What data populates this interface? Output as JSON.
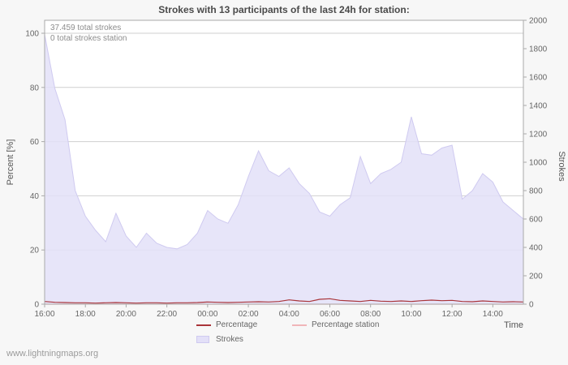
{
  "page": {
    "watermark": "www.lightningmaps.org"
  },
  "chart": {
    "title": "Strokes with 13 participants of the last 24h for station:",
    "annotations": {
      "total_strokes": "37.459 total strokes",
      "total_strokes_station": "0 total strokes station"
    },
    "axes": {
      "left_label": "Percent [%]",
      "right_label": "Strokes",
      "x_label": "Time"
    },
    "legend": {
      "percentage": "Percentage",
      "percentage_station": "Percentage station",
      "strokes": "Strokes"
    }
  },
  "chart_data": {
    "type": "area",
    "title": "Strokes with 13 participants of the last 24h for station:",
    "x": [
      "16:00",
      "16:30",
      "17:00",
      "17:30",
      "18:00",
      "18:30",
      "19:00",
      "19:30",
      "20:00",
      "20:30",
      "21:00",
      "21:30",
      "22:00",
      "22:30",
      "23:00",
      "23:30",
      "00:00",
      "00:30",
      "01:00",
      "01:30",
      "02:00",
      "02:30",
      "03:00",
      "03:30",
      "04:00",
      "04:30",
      "05:00",
      "05:30",
      "06:00",
      "06:30",
      "07:00",
      "07:30",
      "08:00",
      "08:30",
      "09:00",
      "09:30",
      "10:00",
      "10:30",
      "11:00",
      "11:30",
      "12:00",
      "12:30",
      "13:00",
      "13:30",
      "14:00",
      "14:30",
      "15:00",
      "15:30"
    ],
    "x_tick_every": 4,
    "xlabel": "Time",
    "left_axis": {
      "label": "Percent [%]",
      "min": 0,
      "max": 100,
      "ticks": [
        0,
        20,
        40,
        60,
        80,
        100
      ]
    },
    "right_axis": {
      "label": "Strokes",
      "min": 0,
      "max": 2000,
      "ticks": [
        0,
        200,
        400,
        600,
        800,
        1000,
        1200,
        1400,
        1600,
        1800,
        2000
      ]
    },
    "series": [
      {
        "name": "Strokes",
        "type": "area",
        "axis": "right",
        "values": [
          1900,
          1520,
          1300,
          800,
          620,
          520,
          440,
          640,
          480,
          400,
          500,
          430,
          400,
          390,
          420,
          500,
          660,
          600,
          570,
          700,
          900,
          1080,
          940,
          900,
          960,
          850,
          780,
          650,
          620,
          700,
          750,
          1040,
          850,
          920,
          950,
          1000,
          1320,
          1060,
          1050,
          1100,
          1120,
          740,
          800,
          920,
          860,
          720,
          660,
          600
        ]
      },
      {
        "name": "Percentage",
        "type": "line",
        "axis": "left",
        "values": [
          1.0,
          0.7,
          0.6,
          0.5,
          0.5,
          0.4,
          0.5,
          0.6,
          0.5,
          0.4,
          0.5,
          0.5,
          0.4,
          0.5,
          0.5,
          0.6,
          0.8,
          0.7,
          0.6,
          0.7,
          0.8,
          0.9,
          0.8,
          1.0,
          1.6,
          1.2,
          1.0,
          1.8,
          2.0,
          1.4,
          1.2,
          1.0,
          1.4,
          1.1,
          1.0,
          1.2,
          1.0,
          1.3,
          1.5,
          1.3,
          1.4,
          1.0,
          0.9,
          1.2,
          1.0,
          0.8,
          0.9,
          0.8
        ]
      },
      {
        "name": "Percentage station",
        "type": "line",
        "axis": "left",
        "values": [
          0,
          0,
          0,
          0,
          0,
          0,
          0,
          0,
          0,
          0,
          0,
          0,
          0,
          0,
          0,
          0,
          0,
          0,
          0,
          0,
          0,
          0,
          0,
          0,
          0,
          0,
          0,
          0,
          0,
          0,
          0,
          0,
          0,
          0,
          0,
          0,
          0,
          0,
          0,
          0,
          0,
          0,
          0,
          0,
          0,
          0,
          0,
          0
        ]
      }
    ],
    "legend_position": "bottom",
    "grid": true,
    "colors": {
      "strokes_fill": "#e3e0f8",
      "strokes_edge": "#cfcaf0",
      "percentage": "#a93439",
      "percentage_station": "#f0b6b9",
      "grid": "#cfcfcf",
      "axis": "#aaaaaa"
    }
  }
}
